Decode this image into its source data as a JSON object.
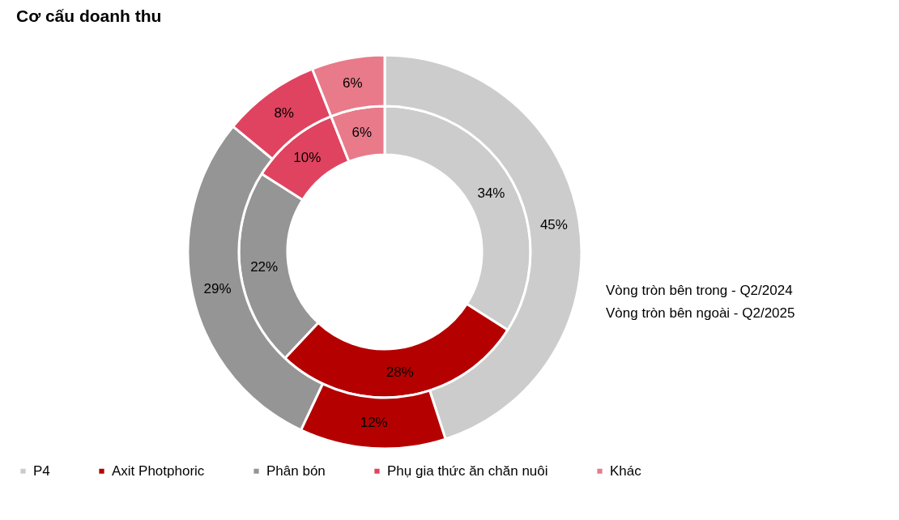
{
  "chart_data": {
    "type": "donut",
    "title": "Cơ cấu doanh thu",
    "categories": [
      "P4",
      "Axit Photphoric",
      "Phân bón",
      "Phụ gia thức ăn chăn nuôi",
      "Khác"
    ],
    "colors": [
      "#cccccc",
      "#b50000",
      "#959595",
      "#e0435f",
      "#e87a8a"
    ],
    "series": [
      {
        "values": [
          34,
          28,
          22,
          10,
          6
        ],
        "value_labels": [
          "34%",
          "28%",
          "22%",
          "10%",
          "6%"
        ]
      },
      {
        "values": [
          45,
          12,
          29,
          8,
          6
        ],
        "value_labels": [
          "45%",
          "12%",
          "29%",
          "8%",
          "6%"
        ]
      }
    ],
    "annotations": [
      "Vòng tròn bên trong - Q2/2024",
      "Vòng tròn bên ngoài - Q2/2025"
    ],
    "legend": "bottom"
  }
}
